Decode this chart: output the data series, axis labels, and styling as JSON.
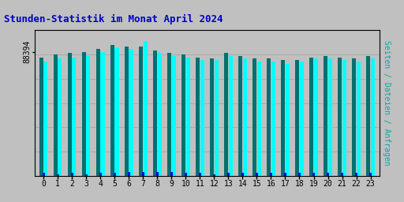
{
  "title": "Stunden-Statistik im Monat April 2024",
  "title_color": "#0000CC",
  "ylabel": "Seiten / Dateien / Anfragen",
  "ylabel_color": "#00AAAA",
  "hours": [
    0,
    1,
    2,
    3,
    4,
    5,
    6,
    7,
    8,
    9,
    10,
    11,
    12,
    13,
    14,
    15,
    16,
    17,
    18,
    19,
    20,
    21,
    22,
    23
  ],
  "ytick_label": "88394",
  "background_color": "#c0c0c0",
  "plot_bg_color": "#c0c0c0",
  "seiten_values": [
    88,
    90,
    91,
    92,
    94,
    97,
    96,
    96,
    93,
    91,
    90,
    88,
    87,
    91,
    89,
    87,
    87,
    86,
    86,
    88,
    89,
    88,
    87,
    89
  ],
  "dateien_values": [
    85,
    87,
    88,
    89,
    92,
    95,
    94,
    100,
    91,
    89,
    88,
    86,
    86,
    89,
    87,
    85,
    85,
    83,
    85,
    87,
    87,
    86,
    85,
    87
  ],
  "anfragen_values": [
    2,
    1,
    2,
    1,
    2,
    2,
    3,
    3,
    3,
    3,
    2,
    2,
    1,
    2,
    2,
    2,
    2,
    2,
    2,
    2,
    2,
    2,
    2,
    2
  ],
  "seiten_color": "#007070",
  "dateien_color": "#00FFFF",
  "anfragen_color": "#0000EE",
  "ylim_max": 108,
  "ytick_val": 92,
  "font_size_title": 9,
  "font_size_tick": 7,
  "font_size_ylabel": 7
}
